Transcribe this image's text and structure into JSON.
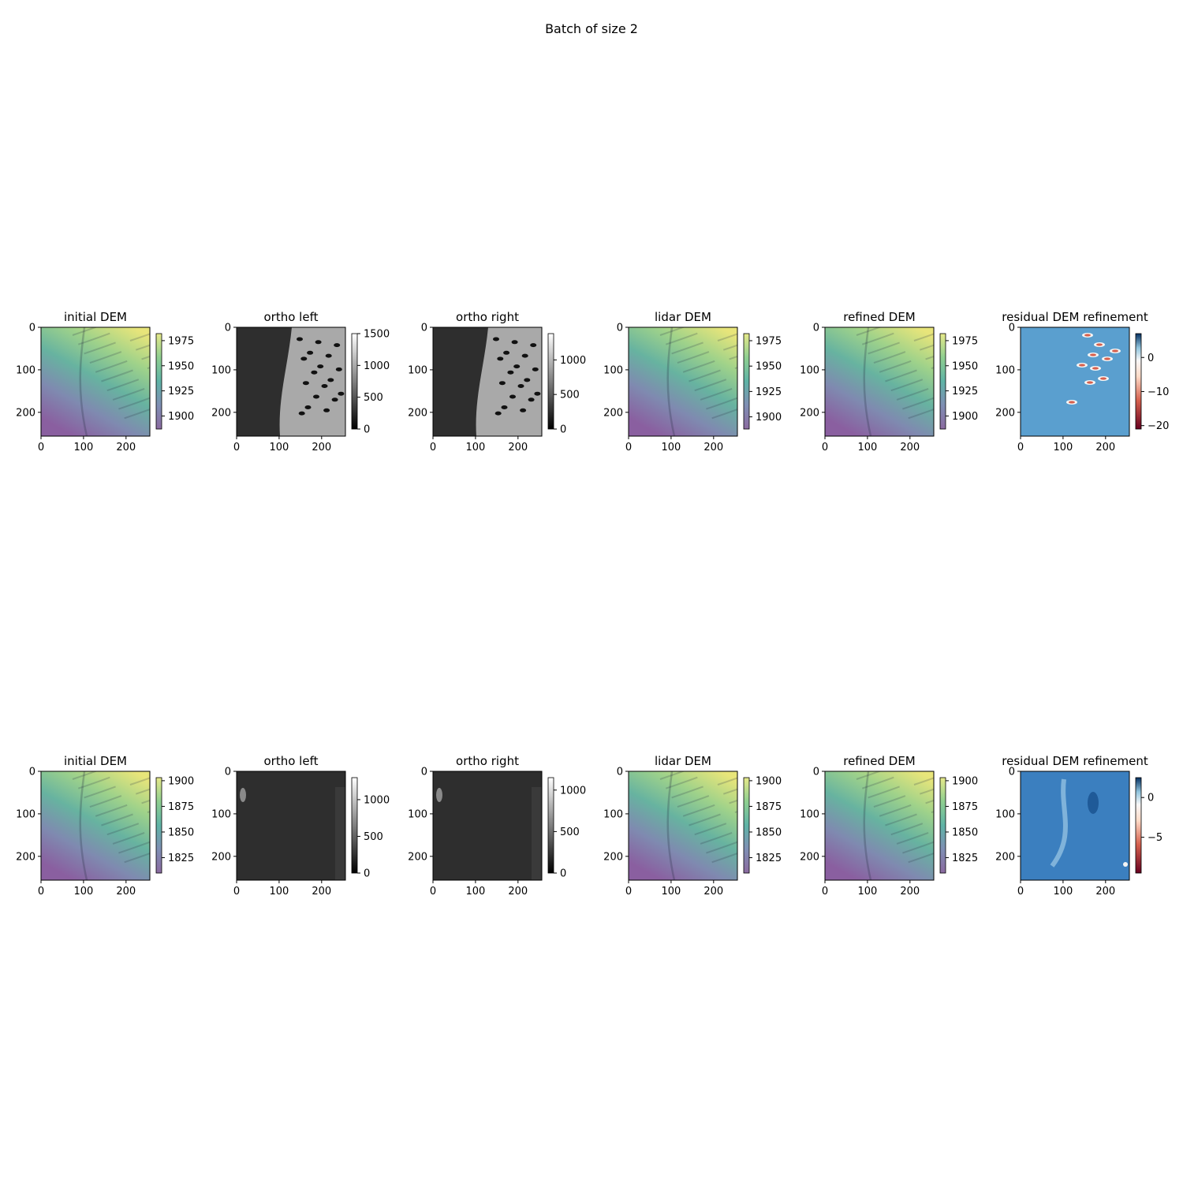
{
  "figure": {
    "title": "Batch of size 2"
  },
  "chart_data": [
    {
      "type": "heatmap",
      "row": 0,
      "col": 0,
      "title": "initial DEM",
      "cmap": "viridis",
      "overlay": "hillshade",
      "xticks": [
        0,
        100,
        200
      ],
      "yticks": [
        0,
        100,
        200
      ],
      "xlim": [
        0,
        256
      ],
      "ylim": [
        256,
        0
      ],
      "colorbar": {
        "range": [
          1887,
          1982
        ],
        "ticks": [
          1900,
          1925,
          1950,
          1975
        ]
      },
      "field": {
        "low_corner": "bottom-center",
        "high_corner": "top-right",
        "ridge_x": 105
      }
    },
    {
      "type": "heatmap",
      "row": 0,
      "col": 1,
      "title": "ortho left",
      "cmap": "gray",
      "xticks": [
        0,
        100,
        200
      ],
      "yticks": [
        0,
        100,
        200
      ],
      "xlim": [
        0,
        256
      ],
      "ylim": [
        256,
        0
      ],
      "colorbar": {
        "range": [
          0,
          1500
        ],
        "ticks": [
          0,
          500,
          1000,
          1500
        ]
      }
    },
    {
      "type": "heatmap",
      "row": 0,
      "col": 2,
      "title": "ortho right",
      "cmap": "gray",
      "xticks": [
        0,
        100,
        200
      ],
      "yticks": [
        0,
        100,
        200
      ],
      "xlim": [
        0,
        256
      ],
      "ylim": [
        256,
        0
      ],
      "colorbar": {
        "range": [
          0,
          1380
        ],
        "ticks": [
          0,
          500,
          1000
        ]
      }
    },
    {
      "type": "heatmap",
      "row": 0,
      "col": 3,
      "title": "lidar DEM",
      "cmap": "viridis",
      "overlay": "hillshade",
      "xticks": [
        0,
        100,
        200
      ],
      "yticks": [
        0,
        100,
        200
      ],
      "xlim": [
        0,
        256
      ],
      "ylim": [
        256,
        0
      ],
      "colorbar": {
        "range": [
          1888,
          1982
        ],
        "ticks": [
          1900,
          1925,
          1950,
          1975
        ]
      }
    },
    {
      "type": "heatmap",
      "row": 0,
      "col": 4,
      "title": "refined DEM",
      "cmap": "viridis",
      "overlay": "hillshade",
      "xticks": [
        0,
        100,
        200
      ],
      "yticks": [
        0,
        100,
        200
      ],
      "xlim": [
        0,
        256
      ],
      "ylim": [
        256,
        0
      ],
      "colorbar": {
        "range": [
          1887,
          1982
        ],
        "ticks": [
          1900,
          1925,
          1950,
          1975
        ]
      }
    },
    {
      "type": "heatmap",
      "row": 0,
      "col": 5,
      "title": "residual DEM refinement",
      "cmap": "RdBu",
      "xticks": [
        0,
        100,
        200
      ],
      "yticks": [
        0,
        100,
        200
      ],
      "xlim": [
        0,
        256
      ],
      "ylim": [
        256,
        0
      ],
      "colorbar": {
        "range": [
          -21,
          7
        ],
        "ticks": [
          -20,
          -10,
          0
        ]
      }
    },
    {
      "type": "heatmap",
      "row": 1,
      "col": 0,
      "title": "initial DEM",
      "cmap": "viridis",
      "overlay": "hillshade",
      "xticks": [
        0,
        100,
        200
      ],
      "yticks": [
        0,
        100,
        200
      ],
      "xlim": [
        0,
        256
      ],
      "ylim": [
        256,
        0
      ],
      "colorbar": {
        "range": [
          1810,
          1903
        ],
        "ticks": [
          1825,
          1850,
          1875,
          1900
        ]
      }
    },
    {
      "type": "heatmap",
      "row": 1,
      "col": 1,
      "title": "ortho left",
      "cmap": "gray",
      "xticks": [
        0,
        100,
        200
      ],
      "yticks": [
        0,
        100,
        200
      ],
      "xlim": [
        0,
        256
      ],
      "ylim": [
        256,
        0
      ],
      "colorbar": {
        "range": [
          0,
          1300
        ],
        "ticks": [
          0,
          500,
          1000
        ]
      }
    },
    {
      "type": "heatmap",
      "row": 1,
      "col": 2,
      "title": "ortho right",
      "cmap": "gray",
      "xticks": [
        0,
        100,
        200
      ],
      "yticks": [
        0,
        100,
        200
      ],
      "xlim": [
        0,
        256
      ],
      "ylim": [
        256,
        0
      ],
      "colorbar": {
        "range": [
          0,
          1150
        ],
        "ticks": [
          0,
          500,
          1000
        ]
      }
    },
    {
      "type": "heatmap",
      "row": 1,
      "col": 3,
      "title": "lidar DEM",
      "cmap": "viridis",
      "overlay": "hillshade",
      "xticks": [
        0,
        100,
        200
      ],
      "yticks": [
        0,
        100,
        200
      ],
      "xlim": [
        0,
        256
      ],
      "ylim": [
        256,
        0
      ],
      "colorbar": {
        "range": [
          1810,
          1903
        ],
        "ticks": [
          1825,
          1850,
          1875,
          1900
        ]
      }
    },
    {
      "type": "heatmap",
      "row": 1,
      "col": 4,
      "title": "refined DEM",
      "cmap": "viridis",
      "overlay": "hillshade",
      "xticks": [
        0,
        100,
        200
      ],
      "yticks": [
        0,
        100,
        200
      ],
      "xlim": [
        0,
        256
      ],
      "ylim": [
        256,
        0
      ],
      "colorbar": {
        "range": [
          1810,
          1903
        ],
        "ticks": [
          1825,
          1850,
          1875,
          1900
        ]
      }
    },
    {
      "type": "heatmap",
      "row": 1,
      "col": 5,
      "title": "residual DEM refinement",
      "cmap": "RdBu",
      "xticks": [
        0,
        100,
        200
      ],
      "yticks": [
        0,
        100,
        200
      ],
      "xlim": [
        0,
        256
      ],
      "ylim": [
        256,
        0
      ],
      "colorbar": {
        "range": [
          -9.5,
          2.5
        ],
        "ticks": [
          -5,
          0
        ]
      }
    }
  ]
}
